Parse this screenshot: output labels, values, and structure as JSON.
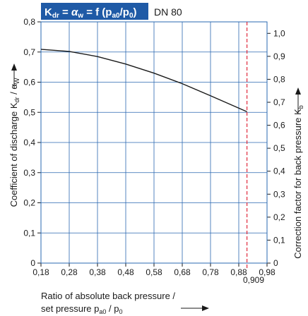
{
  "chart_data": {
    "type": "line",
    "title": "K_dr = α_w = f (p_a0/p_0)",
    "title_parts": {
      "K": "K",
      "dr": "dr",
      "eq1": " = ",
      "alpha": "α",
      "w": "w",
      "eq2": " = f (p",
      "a0": "a0",
      "slash": "/p",
      "zero": "0",
      "close": ")"
    },
    "subtitle": "DN 80",
    "title_box_color": "#1f5aa6",
    "grid": true,
    "grid_color": "#2a68b0",
    "curve_color": "#1a1a1a",
    "marker_color": "#e0293b",
    "x": [
      0.18,
      0.28,
      0.38,
      0.48,
      0.58,
      0.68,
      0.78,
      0.909
    ],
    "series": [
      {
        "values": [
          0.709,
          0.702,
          0.685,
          0.66,
          0.63,
          0.595,
          0.555,
          0.502
        ]
      }
    ],
    "xlim": [
      0.18,
      0.98
    ],
    "ylim": [
      0,
      0.8
    ],
    "xticks": [
      "0,18",
      "0,28",
      "0,38",
      "0,48",
      "0,58",
      "0,68",
      "0,78",
      "0,88",
      "0,98"
    ],
    "yticks": [
      "0",
      "0,1",
      "0,2",
      "0,3",
      "0,4",
      "0,5",
      "0,6",
      "0,7",
      "0,8"
    ],
    "y2lim": [
      0,
      1.05
    ],
    "y2ticks": [
      "0",
      "0,1",
      "0,2",
      "0,3",
      "0,4",
      "0,5",
      "0,6",
      "0,7",
      "0,8",
      "0,9",
      "1,0"
    ],
    "marker_x": 0.909,
    "marker_label": "0,909",
    "xlabel_line1": "Ratio of absolute back pressure /",
    "xlabel_line2_main": "set pressure p",
    "xlabel_line2_sub1": "a0",
    "xlabel_line2_mid": " / p",
    "xlabel_line2_sub2": "0",
    "ylabel_main": "Coefficient of discharge K",
    "ylabel_sub1": "dr",
    "ylabel_mid": " / α",
    "ylabel_sub2": "W",
    "y2label_main": "Correction factor for back pressure K",
    "y2label_sub": "b"
  }
}
